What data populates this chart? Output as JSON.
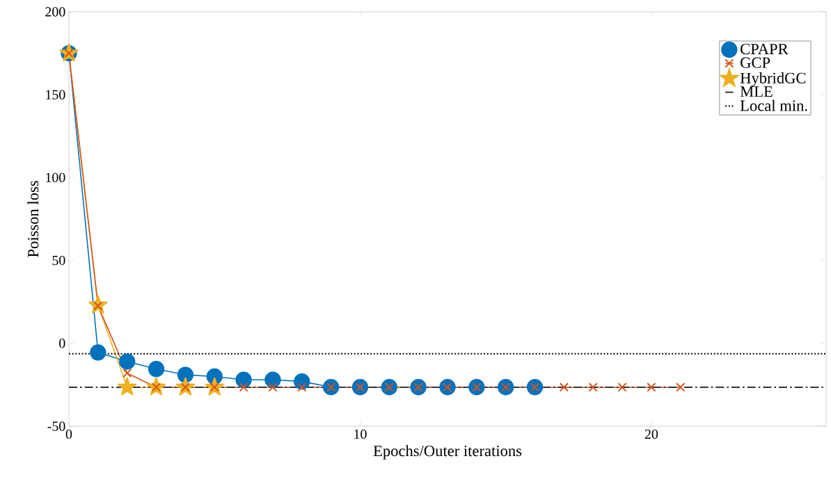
{
  "chart_data": {
    "type": "line",
    "xlabel": "Epochs/Outer iterations",
    "ylabel": "Poisson loss",
    "xlim": [
      0,
      26
    ],
    "ylim": [
      -50,
      200
    ],
    "xticks": [
      0,
      10,
      20
    ],
    "yticks": [
      -50,
      0,
      50,
      100,
      150,
      200
    ],
    "grid": false,
    "legend": "top right",
    "series": [
      {
        "name": "CPAPR",
        "color": "#0072bd",
        "marker": "circle",
        "x": [
          0,
          1,
          2,
          3,
          4,
          5,
          6,
          7,
          8,
          9,
          10,
          11,
          12,
          13,
          14,
          15,
          16
        ],
        "values": [
          175,
          -5.5,
          -11,
          -15.5,
          -19,
          -20,
          -22,
          -22,
          -23,
          -26.4,
          -26.4,
          -26.4,
          -26.4,
          -26.4,
          -26.4,
          -26.4,
          -26.4
        ]
      },
      {
        "name": "GCP",
        "color": "#d95319",
        "marker": "cross",
        "x": [
          0,
          1,
          2,
          3,
          4,
          5,
          6,
          7,
          8,
          9,
          10,
          11,
          12,
          13,
          14,
          15,
          16,
          17,
          18,
          19,
          20,
          21
        ],
        "values": [
          175,
          22.6,
          -18,
          -26.5,
          -26.5,
          -26.5,
          -26.5,
          -26.5,
          -26.5,
          -26.5,
          -26.5,
          -26.5,
          -26.5,
          -26.5,
          -26.5,
          -26.5,
          -26.5,
          -26.5,
          -26.5,
          -26.5,
          -26.5,
          -26.5
        ]
      },
      {
        "name": "HybridGC",
        "color": "#edb120",
        "marker": "star",
        "x": [
          0,
          1,
          2,
          3,
          4,
          5
        ],
        "values": [
          175,
          23,
          -26.5,
          -26.5,
          -26.5,
          -26.5
        ]
      }
    ],
    "ref_lines": [
      {
        "axis": "y",
        "value": -26.5,
        "label": "MLE",
        "color": "#333333",
        "line_style": "dashdot"
      },
      {
        "axis": "y",
        "value": -6.3,
        "label": "Local min.",
        "color": "#000000",
        "line_style": "dotted"
      }
    ]
  }
}
